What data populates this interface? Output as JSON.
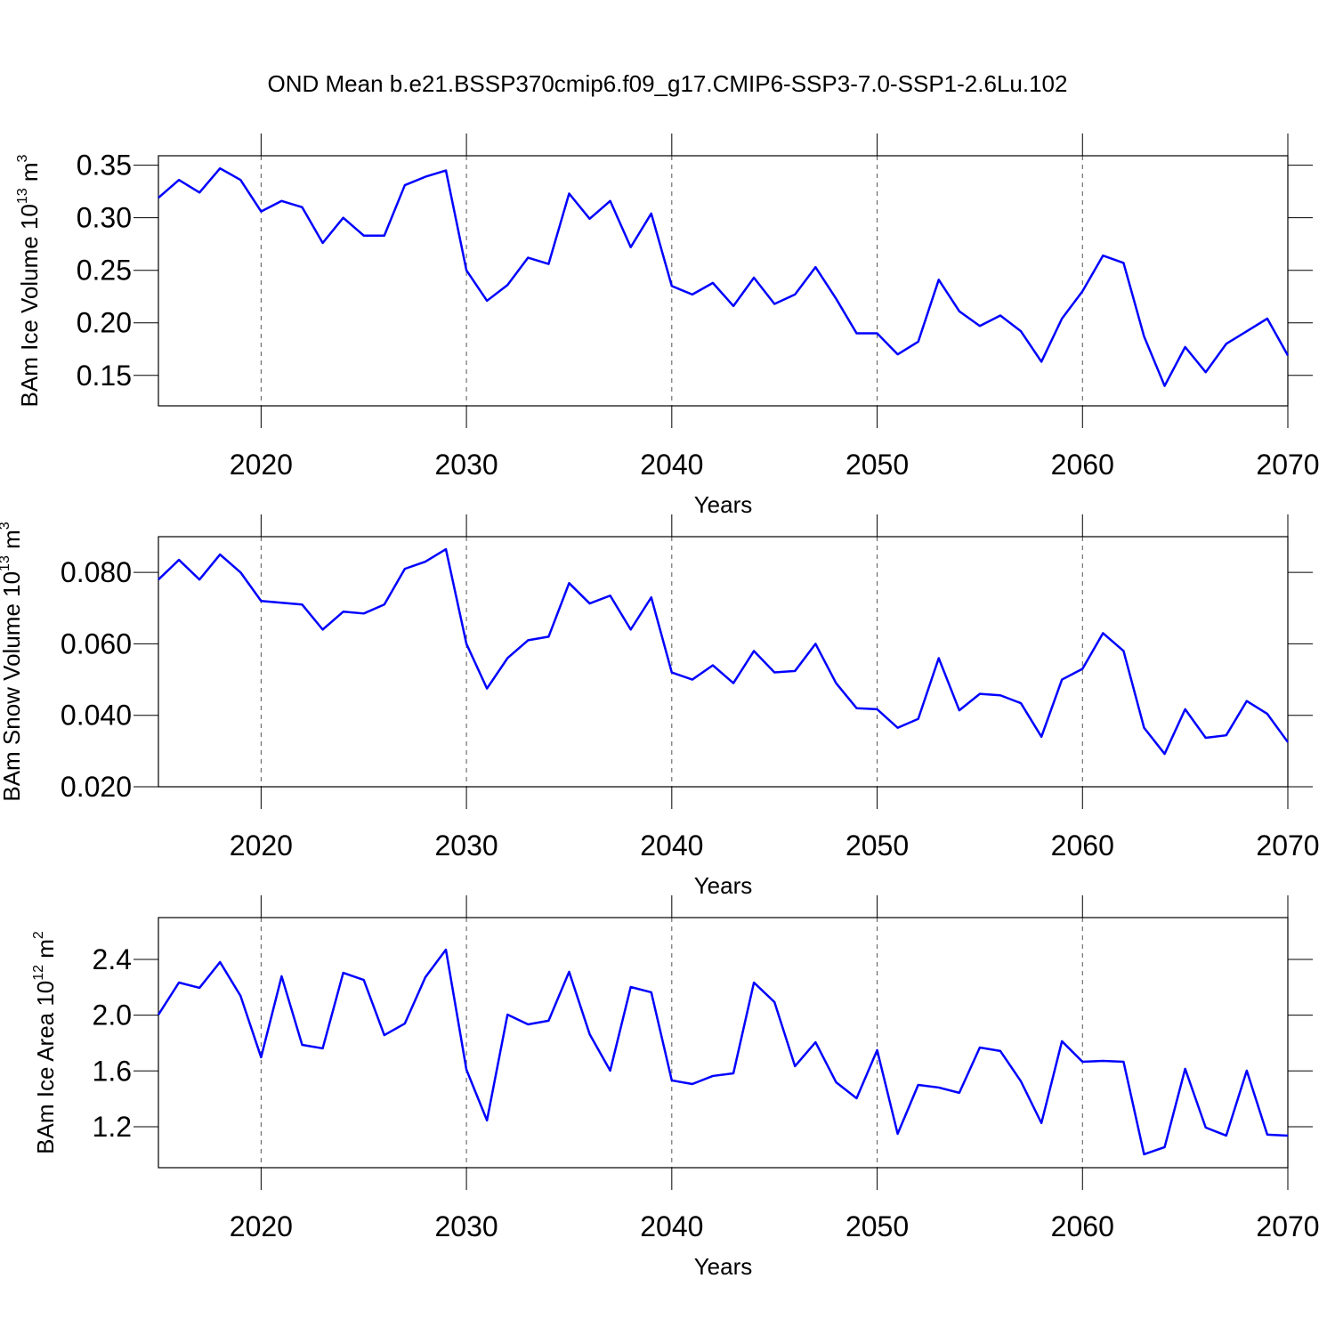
{
  "title": "OND Mean b.e21.BSSP370cmip6.f09_g17.CMIP6-SSP3-7.0-SSP1-2.6Lu.102",
  "chart_data": [
    {
      "type": "line",
      "xlabel": "Years",
      "ylabel": [
        "BAm Ice Volume 10",
        "13",
        " m",
        "3"
      ],
      "x": [
        2015,
        2016,
        2017,
        2018,
        2019,
        2020,
        2021,
        2022,
        2023,
        2024,
        2025,
        2026,
        2027,
        2028,
        2029,
        2030,
        2031,
        2032,
        2033,
        2034,
        2035,
        2036,
        2037,
        2038,
        2039,
        2040,
        2041,
        2042,
        2043,
        2044,
        2045,
        2046,
        2047,
        2048,
        2049,
        2050,
        2051,
        2052,
        2053,
        2054,
        2055,
        2056,
        2057,
        2058,
        2059,
        2060,
        2061,
        2062,
        2063,
        2064,
        2065,
        2066,
        2067,
        2068,
        2069,
        2070
      ],
      "values": [
        0.319,
        0.336,
        0.324,
        0.347,
        0.336,
        0.306,
        0.316,
        0.31,
        0.276,
        0.3,
        0.283,
        0.283,
        0.331,
        0.339,
        0.345,
        0.25,
        0.221,
        0.236,
        0.262,
        0.256,
        0.323,
        0.299,
        0.316,
        0.272,
        0.304,
        0.235,
        0.227,
        0.238,
        0.216,
        0.243,
        0.218,
        0.227,
        0.253,
        0.223,
        0.19,
        0.19,
        0.17,
        0.182,
        0.241,
        0.211,
        0.197,
        0.207,
        0.192,
        0.163,
        0.204,
        0.23,
        0.264,
        0.257,
        0.187,
        0.14,
        0.177,
        0.153,
        0.18,
        0.192,
        0.204,
        0.169
      ],
      "color": "#0000ff",
      "xlim": [
        2015,
        2070
      ],
      "xticks": [
        2020,
        2030,
        2040,
        2050,
        2060,
        2070
      ],
      "ylim": [
        0.121,
        0.359
      ],
      "yticks": [
        0.15,
        {
          "value": 0.2,
          "label": "0.20"
        },
        0.25,
        {
          "value": 0.3,
          "label": "0.30"
        },
        0.35
      ],
      "xgrid": true
    },
    {
      "type": "line",
      "xlabel": "Years",
      "ylabel": [
        "BAm Snow Volume 10",
        "13",
        " m",
        "3"
      ],
      "x": [
        2015,
        2016,
        2017,
        2018,
        2019,
        2020,
        2021,
        2022,
        2023,
        2024,
        2025,
        2026,
        2027,
        2028,
        2029,
        2030,
        2031,
        2032,
        2033,
        2034,
        2035,
        2036,
        2037,
        2038,
        2039,
        2040,
        2041,
        2042,
        2043,
        2044,
        2045,
        2046,
        2047,
        2048,
        2049,
        2050,
        2051,
        2052,
        2053,
        2054,
        2055,
        2056,
        2057,
        2058,
        2059,
        2060,
        2061,
        2062,
        2063,
        2064,
        2065,
        2066,
        2067,
        2068,
        2069,
        2070
      ],
      "values": [
        0.078,
        0.0835,
        0.078,
        0.085,
        0.08,
        0.072,
        0.0715,
        0.071,
        0.064,
        0.069,
        0.0685,
        0.071,
        0.081,
        0.083,
        0.0865,
        0.06,
        0.0475,
        0.056,
        0.061,
        0.062,
        0.077,
        0.0713,
        0.0735,
        0.064,
        0.073,
        0.052,
        0.05,
        0.054,
        0.049,
        0.058,
        0.052,
        0.0524,
        0.06,
        0.049,
        0.042,
        0.0417,
        0.0365,
        0.039,
        0.056,
        0.0414,
        0.046,
        0.0456,
        0.0434,
        0.034,
        0.05,
        0.053,
        0.063,
        0.058,
        0.0365,
        0.0292,
        0.0417,
        0.0337,
        0.0344,
        0.044,
        0.0404,
        0.0325
      ],
      "color": "#0000ff",
      "xlim": [
        2015,
        2070
      ],
      "xticks": [
        2020,
        2030,
        2040,
        2050,
        2060,
        2070
      ],
      "ylim": [
        0.02,
        0.09
      ],
      "yticks": [
        {
          "value": 0.02,
          "label": "0.020"
        },
        {
          "value": 0.04,
          "label": "0.040"
        },
        {
          "value": 0.06,
          "label": "0.060"
        },
        {
          "value": 0.08,
          "label": "0.080"
        }
      ],
      "xgrid": true
    },
    {
      "type": "line",
      "xlabel": "Years",
      "ylabel": [
        "BAm Ice Area 10",
        "12",
        " m",
        "2"
      ],
      "x": [
        2015,
        2016,
        2017,
        2018,
        2019,
        2020,
        2021,
        2022,
        2023,
        2024,
        2025,
        2026,
        2027,
        2028,
        2029,
        2030,
        2031,
        2032,
        2033,
        2034,
        2035,
        2036,
        2037,
        2038,
        2039,
        2040,
        2041,
        2042,
        2043,
        2044,
        2045,
        2046,
        2047,
        2048,
        2049,
        2050,
        2051,
        2052,
        2053,
        2054,
        2055,
        2056,
        2057,
        2058,
        2059,
        2060,
        2061,
        2062,
        2063,
        2064,
        2065,
        2066,
        2067,
        2068,
        2069,
        2070
      ],
      "values": [
        2.004,
        2.234,
        2.196,
        2.381,
        2.138,
        1.698,
        2.279,
        1.787,
        1.762,
        2.304,
        2.253,
        1.857,
        1.94,
        2.272,
        2.47,
        1.609,
        1.245,
        2.004,
        1.934,
        1.96,
        2.311,
        1.864,
        1.602,
        2.202,
        2.164,
        1.532,
        1.506,
        1.564,
        1.583,
        2.234,
        2.094,
        1.634,
        1.806,
        1.519,
        1.404,
        1.749,
        1.149,
        1.5,
        1.481,
        1.443,
        1.768,
        1.743,
        1.526,
        1.226,
        1.813,
        1.666,
        1.672,
        1.666,
        1.002,
        1.053,
        1.615,
        1.194,
        1.136,
        1.602,
        1.143,
        1.136
      ],
      "color": "#0000ff",
      "xlim": [
        2015,
        2070
      ],
      "xticks": [
        2020,
        2030,
        2040,
        2050,
        2060,
        2070
      ],
      "ylim": [
        0.906,
        2.7
      ],
      "yticks": [
        1.2,
        1.6,
        {
          "value": 2,
          "label": "2.0"
        },
        2.4
      ],
      "xgrid": true
    }
  ]
}
